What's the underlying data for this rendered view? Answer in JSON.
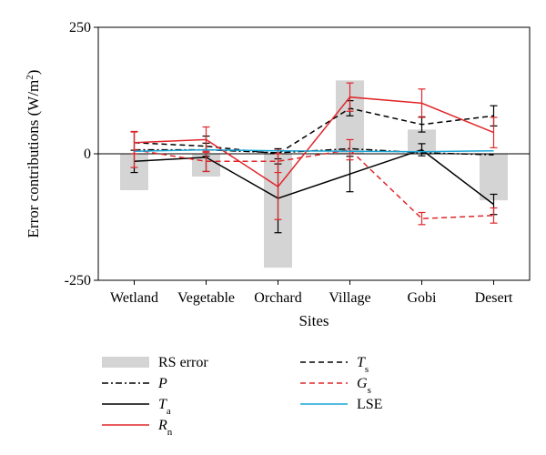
{
  "chart_data": {
    "type": "bar",
    "xlabel": "Sites",
    "ylabel": "Error contributions (W/m",
    "ylabel_sup": "2",
    "ylabel_close": ")",
    "ylim": [
      -250,
      250
    ],
    "yticks": [
      -250,
      0,
      250
    ],
    "categories": [
      "Wetland",
      "Vegetable",
      "Orchard",
      "Village",
      "Gobi",
      "Desert"
    ],
    "bars": {
      "name": "RS error",
      "color": "#d4d4d4",
      "values": [
        -72,
        -45,
        -225,
        145,
        48,
        -92
      ]
    },
    "lines": [
      {
        "key": "P",
        "name": "P",
        "sub": "",
        "color": "#000000",
        "dash": "7,3,2,3",
        "values": [
          8,
          8,
          2,
          10,
          2,
          -2
        ],
        "errors": null
      },
      {
        "key": "Ts",
        "name": "T",
        "sub": "s",
        "color": "#000000",
        "dash": "6,4",
        "values": [
          22,
          15,
          0,
          90,
          58,
          75
        ],
        "errors": [
          22,
          20,
          10,
          15,
          15,
          20
        ]
      },
      {
        "key": "Ta",
        "name": "T",
        "sub": "a",
        "color": "#000000",
        "dash": "",
        "values": [
          -15,
          -7,
          -88,
          -40,
          8,
          -100
        ],
        "errors": [
          22,
          28,
          68,
          35,
          12,
          20
        ]
      },
      {
        "key": "Gs",
        "name": "G",
        "sub": "s",
        "color": "#e0262a",
        "dash": "6,4",
        "values": [
          8,
          -15,
          -15,
          8,
          -128,
          -122
        ],
        "errors": [
          35,
          20,
          22,
          20,
          12,
          15
        ]
      },
      {
        "key": "Rn",
        "name": "R",
        "sub": "n",
        "color": "#e0262a",
        "dash": "",
        "values": [
          22,
          28,
          -65,
          112,
          100,
          42
        ],
        "errors": [
          22,
          25,
          65,
          28,
          28,
          30
        ]
      },
      {
        "key": "LSE",
        "name": "LSE",
        "sub": "",
        "color": "#1aa6d6",
        "dash": "",
        "values": [
          5,
          8,
          6,
          5,
          4,
          6
        ],
        "errors": null
      }
    ],
    "legend_placement": "bottom",
    "grid": false
  }
}
